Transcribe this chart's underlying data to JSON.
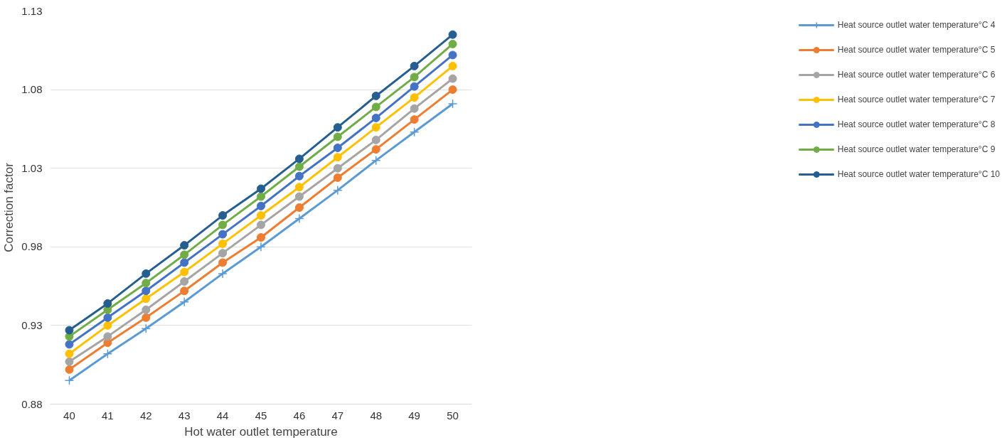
{
  "chart_data": {
    "type": "line",
    "xlabel": "Hot water outlet temperature",
    "ylabel": "Correction factor",
    "categories": [
      "40",
      "41",
      "42",
      "43",
      "44",
      "45",
      "46",
      "47",
      "48",
      "49",
      "50"
    ],
    "ylim": [
      0.88,
      1.13
    ],
    "yticks": [
      {
        "value": 0.88,
        "label": "0.88"
      },
      {
        "value": 0.93,
        "label": "0.93"
      },
      {
        "value": 0.98,
        "label": "0.98"
      },
      {
        "value": 1.03,
        "label": "1.03"
      },
      {
        "value": 1.08,
        "label": "1.08"
      },
      {
        "value": 1.13,
        "label": "1.13"
      }
    ],
    "grid": "y",
    "legend": "right",
    "marker": "circle",
    "series": [
      {
        "name": "Heat source outlet water temperature°C 4",
        "color": "#5b9bd5",
        "marker": "cross",
        "values": [
          0.895,
          0.912,
          0.928,
          0.945,
          0.963,
          0.98,
          0.998,
          1.016,
          1.035,
          1.053,
          1.071
        ]
      },
      {
        "name": "Heat source outlet water temperature°C 5",
        "color": "#ed7d31",
        "values": [
          0.902,
          0.919,
          0.935,
          0.952,
          0.97,
          0.986,
          1.005,
          1.024,
          1.042,
          1.061,
          1.08
        ]
      },
      {
        "name": "Heat source outlet water temperature°C 6",
        "color": "#a5a5a5",
        "values": [
          0.907,
          0.923,
          0.94,
          0.958,
          0.976,
          0.994,
          1.012,
          1.03,
          1.048,
          1.068,
          1.087
        ]
      },
      {
        "name": "Heat source outlet water temperature°C 7",
        "color": "#ffc000",
        "values": [
          0.912,
          0.93,
          0.947,
          0.964,
          0.982,
          1.0,
          1.018,
          1.037,
          1.056,
          1.075,
          1.095
        ]
      },
      {
        "name": "Heat source outlet water temperature°C 8",
        "color": "#4472c4",
        "values": [
          0.918,
          0.935,
          0.952,
          0.97,
          0.988,
          1.006,
          1.025,
          1.043,
          1.062,
          1.082,
          1.102
        ]
      },
      {
        "name": "Heat source outlet water temperature°C 9",
        "color": "#70ad47",
        "values": [
          0.923,
          0.94,
          0.957,
          0.975,
          0.994,
          1.012,
          1.031,
          1.05,
          1.069,
          1.088,
          1.109
        ]
      },
      {
        "name": "Heat source outlet water temperature°C 10",
        "color": "#255e91",
        "values": [
          0.927,
          0.944,
          0.963,
          0.981,
          1.0,
          1.017,
          1.036,
          1.056,
          1.076,
          1.095,
          1.115
        ]
      }
    ]
  }
}
